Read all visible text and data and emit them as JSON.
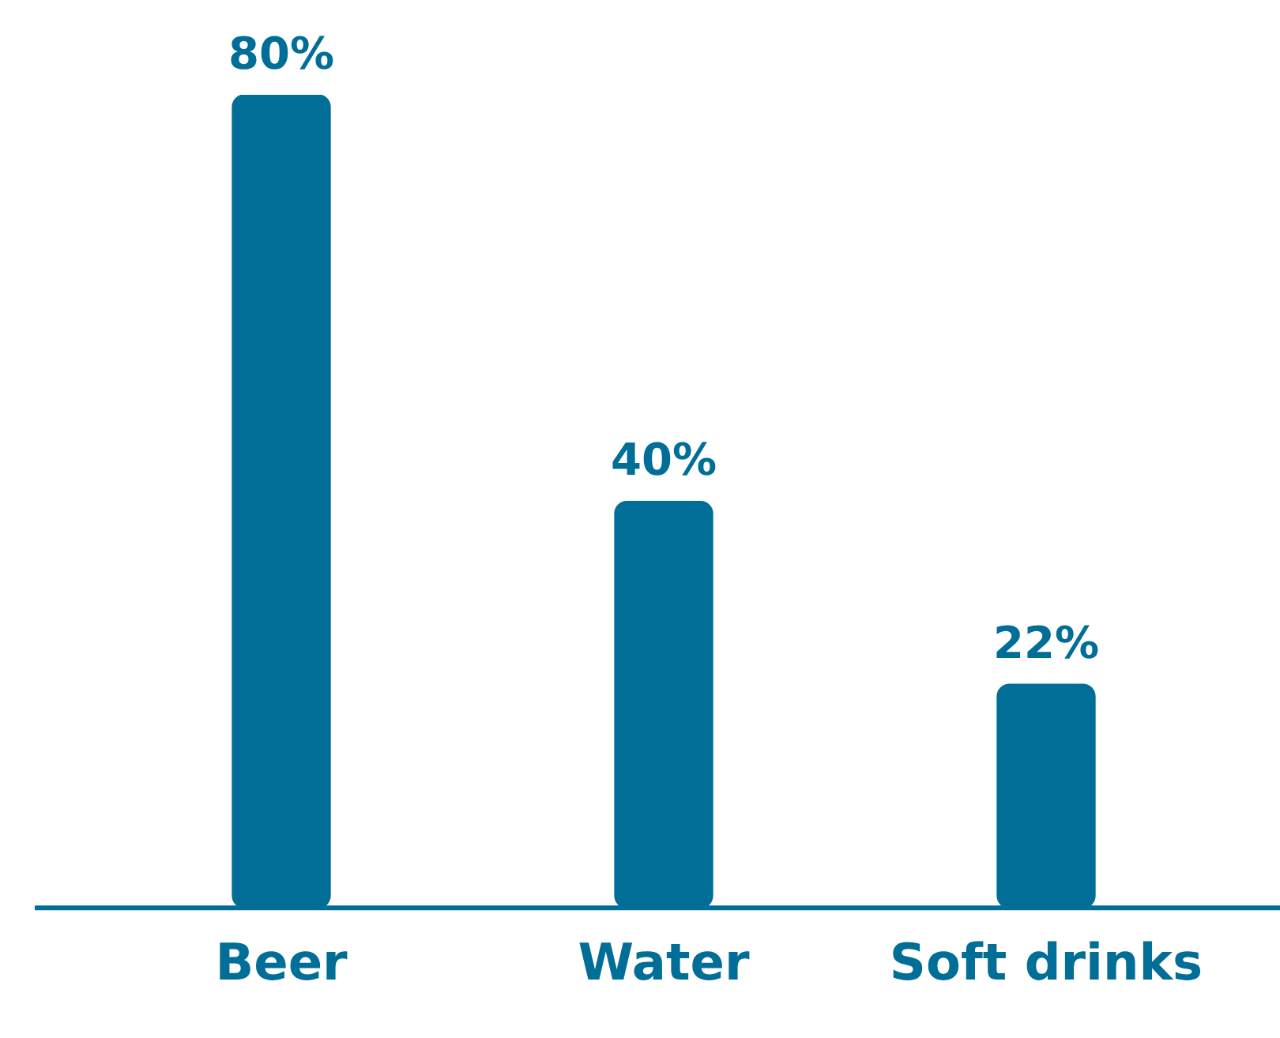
{
  "chart_data": {
    "type": "bar",
    "categories": [
      "Beer",
      "Water",
      "Soft drinks"
    ],
    "values": [
      80,
      40,
      22
    ],
    "value_labels": [
      "80%",
      "40%",
      "22%"
    ],
    "color": "#006e96",
    "grid": false,
    "legend": false,
    "tick_labels": "x"
  }
}
